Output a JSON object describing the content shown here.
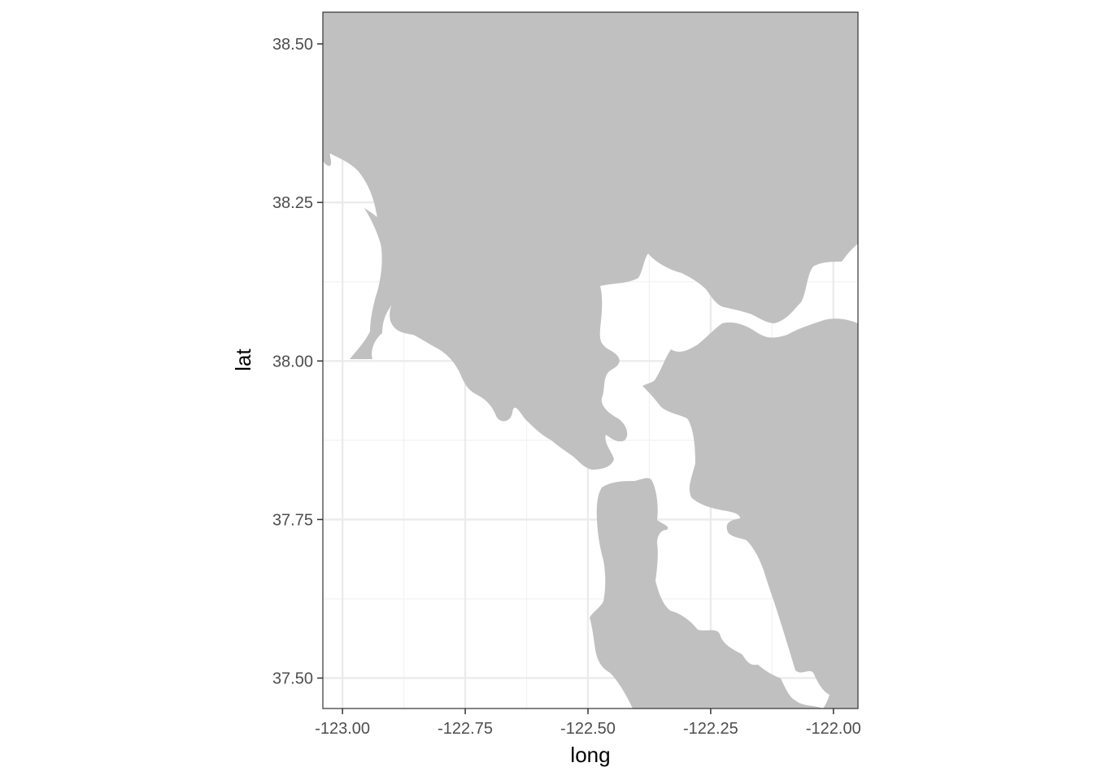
{
  "map": {
    "xlabel": "long",
    "ylabel": "lat",
    "xlim": [
      -123.04,
      -121.95
    ],
    "ylim": [
      37.452,
      38.55
    ],
    "x_ticks": [
      {
        "value": -123.0,
        "label": "-123.00"
      },
      {
        "value": -122.75,
        "label": "-122.75"
      },
      {
        "value": -122.5,
        "label": "-122.50"
      },
      {
        "value": -122.25,
        "label": "-122.25"
      },
      {
        "value": -122.0,
        "label": "-122.00"
      }
    ],
    "y_ticks": [
      {
        "value": 38.5,
        "label": "38.50"
      },
      {
        "value": 38.25,
        "label": "38.25"
      },
      {
        "value": 38.0,
        "label": "38.00"
      },
      {
        "value": 37.75,
        "label": "37.75"
      },
      {
        "value": 37.5,
        "label": "37.50"
      }
    ],
    "minor_x": [
      -122.875,
      -122.625,
      -122.375,
      -122.125
    ],
    "minor_y": [
      38.375,
      38.125,
      37.875,
      37.625
    ],
    "grid": true,
    "land_color": "#c0c0c0",
    "water_color": "#ffffff",
    "grid_major_color": "#ebebeb",
    "grid_minor_color": "#f2f2f2",
    "frame_color": "#333333"
  }
}
